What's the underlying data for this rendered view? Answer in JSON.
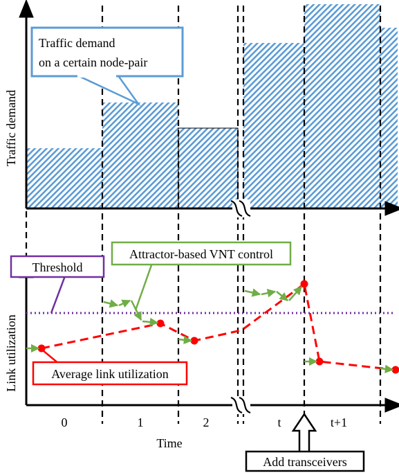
{
  "labels": {
    "top_ylabel": "Traffic demand",
    "bottom_ylabel": "Link utilization",
    "xlabel": "Time"
  },
  "periods": [
    "0",
    "1",
    "2",
    "t",
    "t+1"
  ],
  "callouts": {
    "traffic_line1": "Traffic demand",
    "traffic_line2": "on a certain node-pair",
    "threshold": "Threshold",
    "attractor": "Attractor-based VNT control",
    "average": "Average link utilization",
    "add": "Add transceivers"
  },
  "colors": {
    "hatch": "#5b9bd5",
    "traffic_box": "#5b9bd5",
    "threshold": "#7030a0",
    "attractor": "#70ad47",
    "average": "#ff0000"
  },
  "chart_data": [
    {
      "type": "bar",
      "categories": [
        "0",
        "1",
        "2",
        "t",
        "t+1"
      ],
      "values": [
        0.27,
        0.49,
        0.36,
        0.75,
        0.92
      ],
      "ylabel": "Traffic demand"
    },
    {
      "type": "line",
      "ylabel": "Link utilization",
      "xlabel": "Time",
      "series": [
        {
          "name": "Average link utilization",
          "points": [
            [
              0.2,
              0.27
            ],
            [
              1.75,
              0.4
            ],
            [
              2.2,
              0.3
            ],
            [
              3.9,
              0.57
            ],
            [
              4.2,
              0.2
            ],
            [
              5.2,
              0.16
            ]
          ]
        },
        {
          "name": "Attractor-based VNT control",
          "segments": [
            [
              [
                0,
                0.28
              ],
              [
                0.2,
                0.27
              ]
            ],
            [
              [
                1,
                0.46
              ],
              [
                1.3,
                0.45
              ],
              [
                1.4,
                0.47
              ],
              [
                1.5,
                0.43
              ],
              [
                1.6,
                0.38
              ],
              [
                1.8,
                0.38
              ]
            ],
            [
              [
                2,
                0.31
              ],
              [
                2.2,
                0.3
              ]
            ],
            [
              [
                3.1,
                0.53
              ],
              [
                3.35,
                0.51
              ],
              [
                3.55,
                0.52
              ],
              [
                3.7,
                0.48
              ],
              [
                3.9,
                0.51
              ]
            ],
            [
              [
                4.0,
                0.19
              ],
              [
                4.2,
                0.2
              ]
            ],
            [
              [
                5.0,
                0.15
              ],
              [
                5.2,
                0.16
              ]
            ]
          ]
        },
        {
          "name": "Threshold",
          "value": 0.43
        }
      ]
    }
  ]
}
